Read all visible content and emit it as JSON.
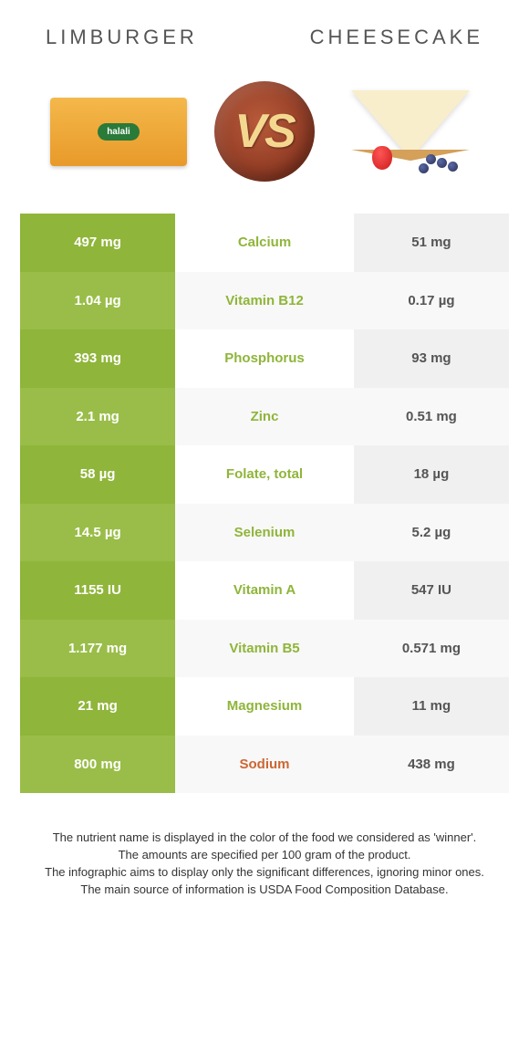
{
  "header": {
    "left": "Limburger",
    "right": "Cheesecake"
  },
  "vs": {
    "text": "VS"
  },
  "colors": {
    "left_bg": "#8fb53a",
    "left_bg_alt": "#99bd48",
    "left_text": "#ffffff",
    "right_bg": "#f0f0f0",
    "right_bg_alt": "#f8f8f8",
    "right_text": "#555555",
    "mid_bg": "#ffffff",
    "mid_bg_alt": "#f8f8f8",
    "nutrient_left_color": "#8fb53a",
    "nutrient_right_color": "#cc6633"
  },
  "rows": [
    {
      "left": "497 mg",
      "name": "Calcium",
      "right": "51 mg",
      "winner": "left"
    },
    {
      "left": "1.04 µg",
      "name": "Vitamin B12",
      "right": "0.17 µg",
      "winner": "left"
    },
    {
      "left": "393 mg",
      "name": "Phosphorus",
      "right": "93 mg",
      "winner": "left"
    },
    {
      "left": "2.1 mg",
      "name": "Zinc",
      "right": "0.51 mg",
      "winner": "left"
    },
    {
      "left": "58 µg",
      "name": "Folate, total",
      "right": "18 µg",
      "winner": "left"
    },
    {
      "left": "14.5 µg",
      "name": "Selenium",
      "right": "5.2 µg",
      "winner": "left"
    },
    {
      "left": "1155 IU",
      "name": "Vitamin A",
      "right": "547 IU",
      "winner": "left"
    },
    {
      "left": "1.177 mg",
      "name": "Vitamin B5",
      "right": "0.571 mg",
      "winner": "left"
    },
    {
      "left": "21 mg",
      "name": "Magnesium",
      "right": "11 mg",
      "winner": "left"
    },
    {
      "left": "800 mg",
      "name": "Sodium",
      "right": "438 mg",
      "winner": "right"
    }
  ],
  "footer": {
    "line1": "The nutrient name is displayed in the color of the food we considered as 'winner'.",
    "line2": "The amounts are specified per 100 gram of the product.",
    "line3": "The infographic aims to display only the significant differences, ignoring minor ones.",
    "line4": "The main source of information is USDA Food Composition Database."
  }
}
